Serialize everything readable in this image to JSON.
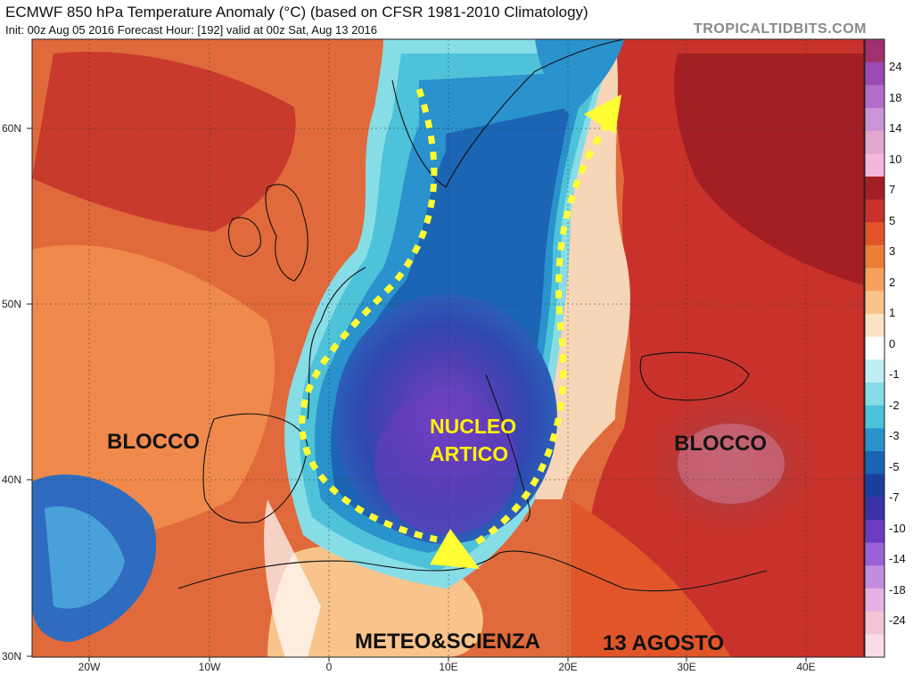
{
  "header": {
    "title": "ECMWF 850 hPa Temperature Anomaly (°C) (based on CFSR 1981-2010 Climatology)",
    "subtitle": "Init: 00z Aug 05 2016   Forecast Hour: [192]   valid at 00z Sat, Aug 13 2016",
    "brand": "TROPICALTIDBITS.COM"
  },
  "axes": {
    "lat_labels": [
      "60N",
      "50N",
      "40N",
      "30N"
    ],
    "lon_labels": [
      "20W",
      "10W",
      "0",
      "10E",
      "20E",
      "30E",
      "40E"
    ]
  },
  "colorbar": {
    "labels": [
      "24",
      "18",
      "14",
      "10",
      "7",
      "5",
      "3",
      "2",
      "1",
      "0",
      "-1",
      "-2",
      "-3",
      "-5",
      "-7",
      "-10",
      "-14",
      "-18",
      "-24"
    ],
    "colors": [
      "#a0306e",
      "#9a4ab0",
      "#b26ec8",
      "#c994d8",
      "#e0a8cc",
      "#f2b8da",
      "#a41f24",
      "#c8322a",
      "#e0562a",
      "#ee7d3a",
      "#f6a15e",
      "#f8c48c",
      "#fbe4c4",
      "#ffffff",
      "#bfeef2",
      "#86dde6",
      "#4ec2d8",
      "#2a92cc",
      "#1c64b4",
      "#1a3f9c",
      "#3b32a6",
      "#6a3cc0",
      "#9a62d4",
      "#c48ee0",
      "#e6b2e6",
      "#f2c6d6",
      "#f8dce4"
    ]
  },
  "annotations": {
    "blocco_left": "BLOCCO",
    "blocco_right": "BLOCCO",
    "nucleo_line1": "NUCLEO",
    "nucleo_line2": "ARTICO",
    "meteo": "METEO&SCIENZA",
    "date": "13 AGOSTO"
  },
  "colors": {
    "arrow": "#ffff33",
    "warm": "#e0562a",
    "cold": "#3b3fb0"
  }
}
